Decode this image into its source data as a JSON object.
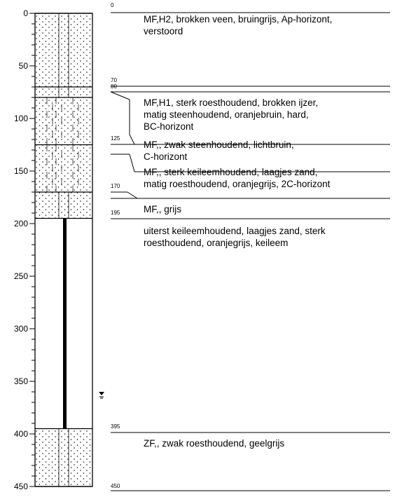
{
  "depth_axis": {
    "ticks": [
      0,
      50,
      100,
      150,
      200,
      250,
      300,
      350,
      400,
      450
    ]
  },
  "water_level_marker": {
    "icon": "groundwater-level-icon"
  },
  "layers": [
    {
      "top": 0,
      "bottom": 70,
      "pattern": "dotted",
      "top_label": "0",
      "description": [
        "MF,H2, brokken veen, bruingrijs, Ap-horizont,",
        "verstoord"
      ]
    },
    {
      "top": 70,
      "bottom": 80,
      "pattern": "dotted",
      "top_label": "70",
      "description": []
    },
    {
      "top": 80,
      "bottom": 125,
      "pattern": "dotted-staggered",
      "top_label": "80",
      "description": [
        "MF,H1, sterk roesthoudend, brokken ijzer,",
        "matig steenhoudend, oranjebruin, hard,",
        "BC-horizont"
      ]
    },
    {
      "top": 125,
      "bottom": 170,
      "pattern": "dotted-staggered",
      "top_label": "125",
      "description": [
        "MF,, zwak steenhoudend, lichtbruin,",
        "C-horizont"
      ]
    },
    {
      "top": 170,
      "bottom": 195,
      "pattern": "dotted",
      "top_label": "170",
      "description": [
        "MF,, sterk keileemhoudend, laagjes zand,",
        "matig roesthoudend, oranjegrijs, 2C-horizont"
      ]
    },
    {
      "top": 195,
      "bottom": 395,
      "pattern": "clay",
      "top_label": "195",
      "description": [
        "MF,, grijs"
      ]
    },
    {
      "top": 395,
      "bottom": 450,
      "pattern": "dotted",
      "top_label": "395",
      "description": [
        "uiterst keileemhoudend, laagjes zand, sterk",
        "roesthoudend, oranjegrijs, keileem"
      ]
    }
  ],
  "bottom_label": "450",
  "bottom_description": [
    "ZF,, zwak roesthoudend, geelgrijs"
  ]
}
